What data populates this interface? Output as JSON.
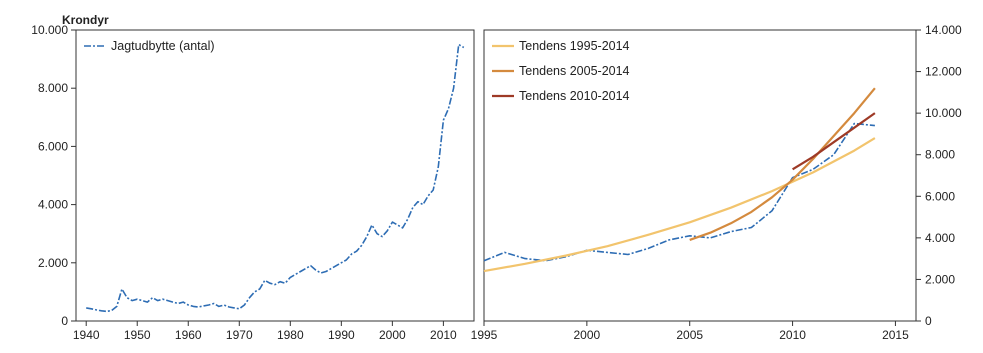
{
  "chart_data": [
    {
      "type": "line",
      "title": "Krondyr",
      "xlim": [
        1938,
        2016
      ],
      "ylim": [
        0,
        10000
      ],
      "x_ticks": [
        "1940",
        "1950",
        "1960",
        "1970",
        "1980",
        "1990",
        "2000",
        "2010"
      ],
      "y_ticks": [
        "0",
        "2.000",
        "4.000",
        "6.000",
        "8.000",
        "10.000"
      ],
      "legend_position": "top-left",
      "grid": false,
      "series": [
        {
          "name": "Jagtudbytte (antal)",
          "color": "#2e6db4",
          "style": "dash-dot",
          "x": [
            1940,
            1941,
            1942,
            1943,
            1944,
            1945,
            1946,
            1947,
            1948,
            1949,
            1950,
            1951,
            1952,
            1953,
            1954,
            1955,
            1956,
            1957,
            1958,
            1959,
            1960,
            1961,
            1962,
            1963,
            1964,
            1965,
            1966,
            1967,
            1968,
            1969,
            1970,
            1971,
            1972,
            1973,
            1974,
            1975,
            1976,
            1977,
            1978,
            1979,
            1980,
            1981,
            1982,
            1983,
            1984,
            1985,
            1986,
            1987,
            1988,
            1989,
            1990,
            1991,
            1992,
            1993,
            1994,
            1995,
            1996,
            1997,
            1998,
            1999,
            2000,
            2001,
            2002,
            2003,
            2004,
            2005,
            2006,
            2007,
            2008,
            2009,
            2010,
            2011,
            2012,
            2013,
            2014
          ],
          "y": [
            450,
            420,
            380,
            350,
            330,
            360,
            500,
            1100,
            800,
            700,
            750,
            700,
            650,
            800,
            700,
            750,
            700,
            650,
            600,
            650,
            550,
            500,
            480,
            520,
            550,
            600,
            500,
            550,
            480,
            450,
            420,
            550,
            800,
            1000,
            1100,
            1400,
            1300,
            1250,
            1350,
            1300,
            1500,
            1600,
            1700,
            1800,
            1900,
            1750,
            1650,
            1700,
            1800,
            1900,
            2000,
            2100,
            2300,
            2400,
            2600,
            2900,
            3300,
            3000,
            2900,
            3100,
            3400,
            3300,
            3200,
            3500,
            3900,
            4100,
            4000,
            4300,
            4500,
            5300,
            6900,
            7300,
            8000,
            9500,
            9400
          ]
        }
      ]
    },
    {
      "type": "line",
      "xlim": [
        1995,
        2016
      ],
      "ylim": [
        0,
        14000
      ],
      "x_ticks": [
        "1995",
        "2000",
        "2005",
        "2010",
        "2015"
      ],
      "y_ticks": [
        "0",
        "2.000",
        "4.000",
        "6.000",
        "8.000",
        "10.000",
        "12.000",
        "14.000"
      ],
      "y_axis_side": "right",
      "legend_position": "top-left",
      "grid": false,
      "series": [
        {
          "color": "#2e6db4",
          "style": "dash-dot",
          "x": [
            1995,
            1996,
            1997,
            1998,
            1999,
            2000,
            2001,
            2002,
            2003,
            2004,
            2005,
            2006,
            2007,
            2008,
            2009,
            2010,
            2011,
            2012,
            2013,
            2014
          ],
          "y": [
            2900,
            3300,
            3000,
            2900,
            3100,
            3400,
            3300,
            3200,
            3500,
            3900,
            4100,
            4000,
            4300,
            4500,
            5300,
            6900,
            7300,
            8000,
            9500,
            9400
          ]
        },
        {
          "name": "Tendens 1995-2014",
          "color": "#f2c46d",
          "x": [
            1995,
            1997,
            1999,
            2001,
            2003,
            2005,
            2007,
            2009,
            2011,
            2013,
            2014
          ],
          "y": [
            2400,
            2750,
            3150,
            3600,
            4150,
            4750,
            5450,
            6250,
            7150,
            8200,
            8800
          ]
        },
        {
          "name": "Tendens 2005-2014",
          "color": "#d48a3e",
          "x": [
            2005,
            2006,
            2007,
            2008,
            2009,
            2010,
            2011,
            2012,
            2013,
            2014
          ],
          "y": [
            3900,
            4250,
            4700,
            5250,
            5950,
            6800,
            7800,
            8900,
            10000,
            11200
          ]
        },
        {
          "name": "Tendens 2010-2014",
          "color": "#9e3a26",
          "x": [
            2010,
            2011,
            2012,
            2013,
            2014
          ],
          "y": [
            7300,
            7900,
            8600,
            9300,
            10000
          ]
        }
      ]
    }
  ]
}
